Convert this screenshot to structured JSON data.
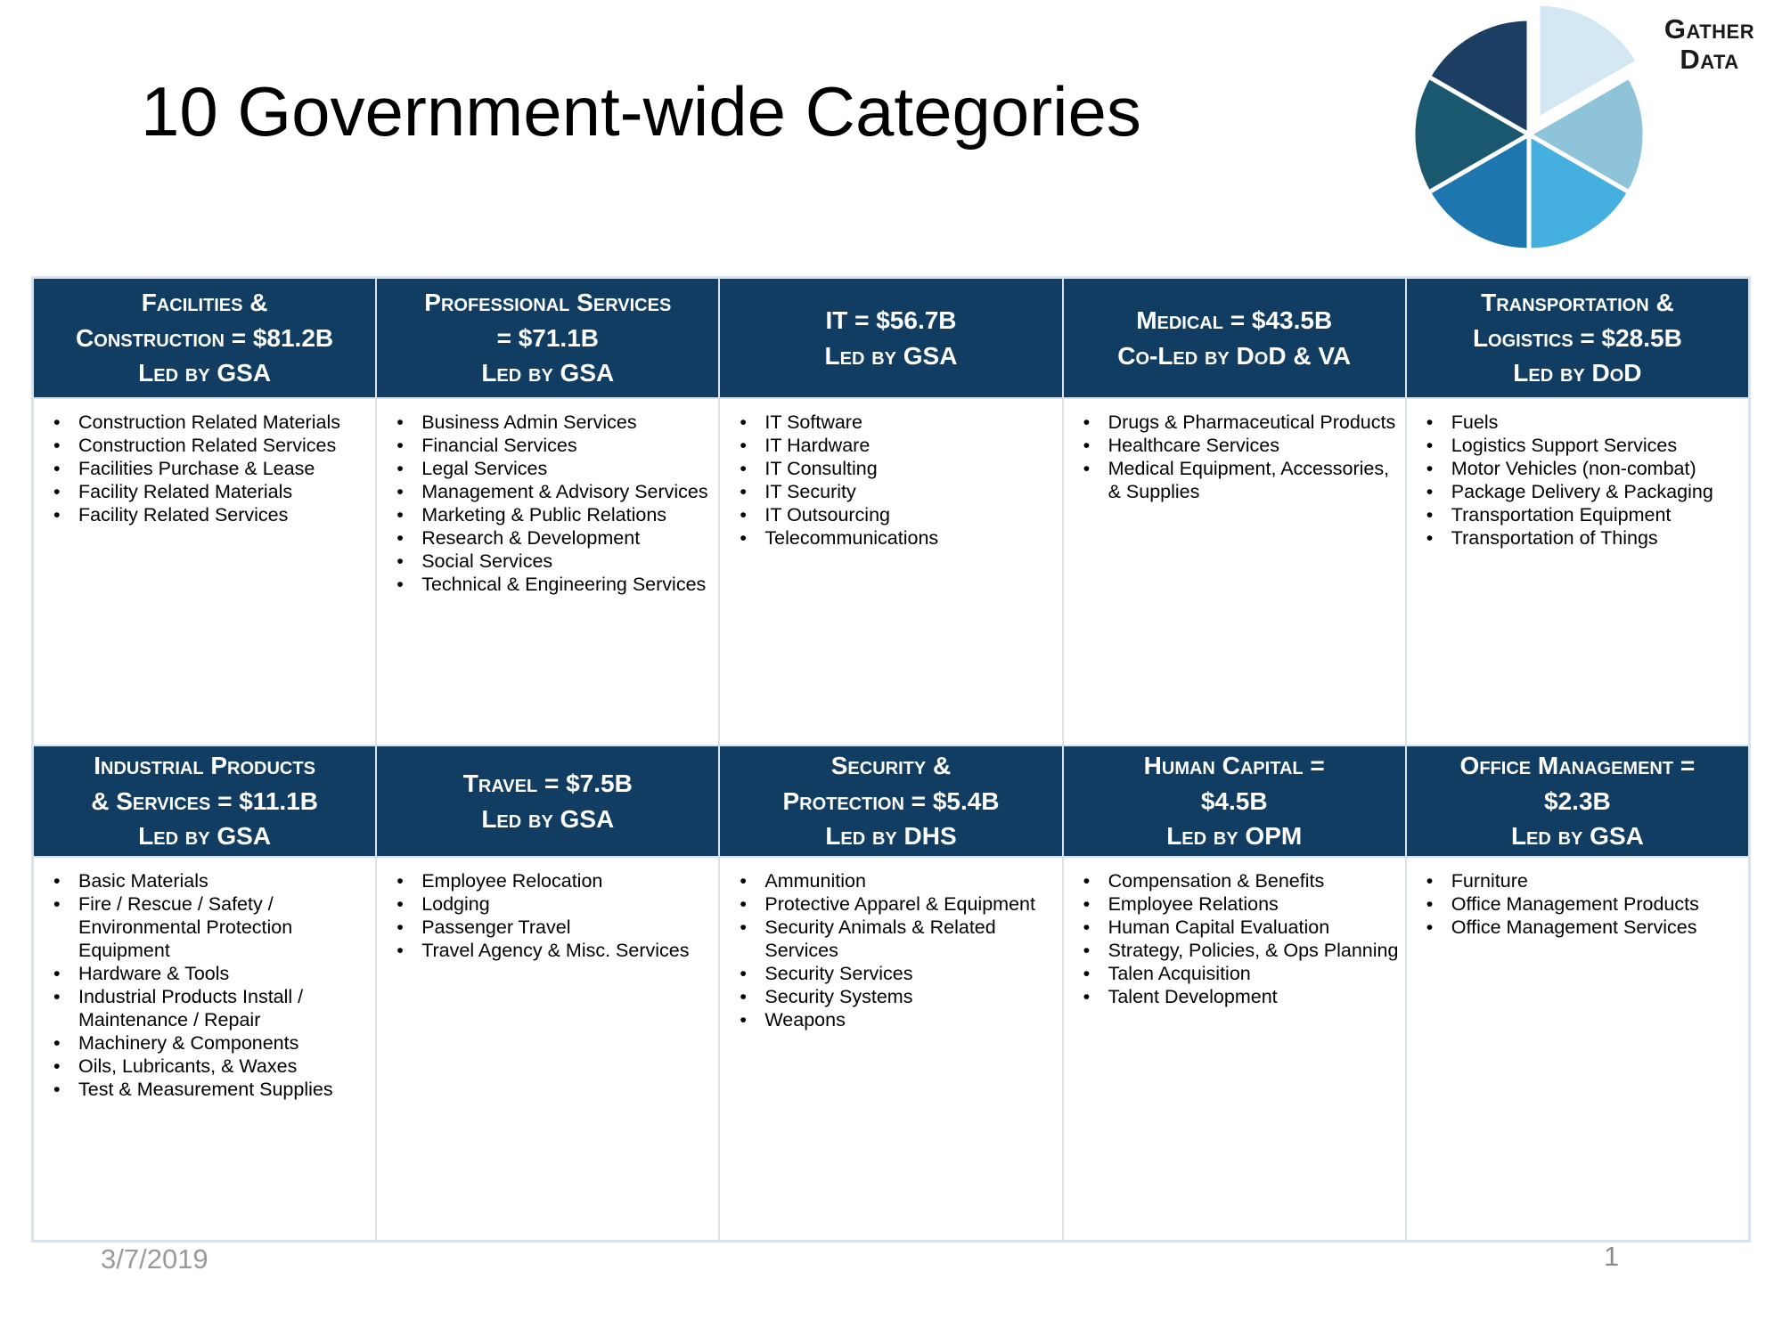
{
  "title": "10 Government-wide Categories",
  "logo": {
    "line1": "Gather",
    "line2": "Data"
  },
  "pie": {
    "slice_colors": [
      "#d4e8f4",
      "#8fc3d9",
      "#45afdf",
      "#1d76ad",
      "#19586f",
      "#1d3e63"
    ],
    "slice_count": 6,
    "exploded_slice_index": 0
  },
  "footer": {
    "date": "3/7/2019",
    "page_number": "1"
  },
  "colors": {
    "header_bg": "#123d63",
    "header_text": "#ffffff",
    "table_border": "#d9e3ee"
  },
  "categories": [
    {
      "header": "Facilities &\nConstruction = $81.2B",
      "led": "Led by GSA",
      "items": [
        "Construction Related Materials",
        "Construction Related Services",
        "Facilities Purchase & Lease",
        "Facility Related Materials",
        "Facility Related Services"
      ]
    },
    {
      "header": "Professional Services\n= $71.1B",
      "led": "Led by GSA",
      "items": [
        "Business Admin Services",
        "Financial Services",
        "Legal Services",
        "Management & Advisory Services",
        "Marketing & Public Relations",
        "Research & Development",
        "Social Services",
        "Technical & Engineering Services"
      ]
    },
    {
      "header": "IT = $56.7B",
      "led": "Led by GSA",
      "items": [
        "IT Software",
        "IT Hardware",
        "IT Consulting",
        "IT Security",
        "IT Outsourcing",
        "Telecommunications"
      ]
    },
    {
      "header": "Medical = $43.5B",
      "led": "Co-Led by DoD & VA",
      "items": [
        "Drugs & Pharmaceutical Products",
        "Healthcare Services",
        "Medical Equipment, Accessories, & Supplies"
      ]
    },
    {
      "header": "Transportation &\nLogistics = $28.5B",
      "led": "Led by DoD",
      "items": [
        "Fuels",
        "Logistics Support Services",
        "Motor Vehicles (non-combat)",
        "Package Delivery & Packaging",
        "Transportation Equipment",
        "Transportation of Things"
      ]
    },
    {
      "header": "Industrial Products\n& Services = $11.1B",
      "led": "Led by GSA",
      "items": [
        "Basic Materials",
        "Fire / Rescue / Safety / Environmental Protection Equipment",
        "Hardware & Tools",
        "Industrial Products Install / Maintenance / Repair",
        "Machinery & Components",
        "Oils, Lubricants, & Waxes",
        "Test & Measurement Supplies"
      ]
    },
    {
      "header": "Travel = $7.5B",
      "led": "Led by GSA",
      "items": [
        "Employee Relocation",
        "Lodging",
        "Passenger Travel",
        "Travel Agency & Misc. Services"
      ]
    },
    {
      "header": "Security &\nProtection = $5.4B",
      "led": "Led by DHS",
      "items": [
        "Ammunition",
        "Protective Apparel & Equipment",
        "Security Animals & Related Services",
        "Security Services",
        "Security Systems",
        "Weapons"
      ]
    },
    {
      "header": "Human Capital =\n$4.5B",
      "led": "Led by OPM",
      "items": [
        "Compensation & Benefits",
        "Employee Relations",
        "Human Capital Evaluation",
        "Strategy, Policies, & Ops Planning",
        "Talen Acquisition",
        "Talent Development"
      ]
    },
    {
      "header": "Office Management =\n$2.3B",
      "led": "Led by GSA",
      "items": [
        "Furniture",
        "Office Management Products",
        "Office Management Services"
      ]
    }
  ]
}
